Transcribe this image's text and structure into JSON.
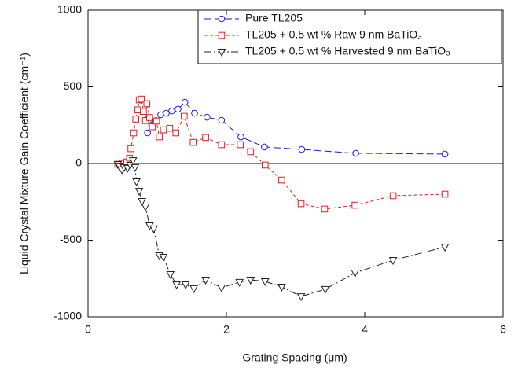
{
  "chart_data": {
    "type": "line",
    "xlabel": "Grating Spacing (μm)",
    "ylabel": "Liquid Crystal Mixture Gain Coefficient (cm⁻¹)",
    "xlim": [
      0,
      6
    ],
    "xticks": [
      0,
      2,
      4,
      6
    ],
    "ylim": [
      -1000,
      1000
    ],
    "yticks": [
      -1000,
      -500,
      0,
      500,
      1000
    ],
    "zero_line": true,
    "legend": "upper right",
    "series": [
      {
        "name": "Pure TL205",
        "color": "#1a1adb",
        "marker": "circle",
        "line_style": "dashed",
        "x": [
          0.86,
          0.92,
          0.98,
          1.05,
          1.13,
          1.21,
          1.3,
          1.4,
          1.54,
          1.72,
          1.93,
          2.21,
          2.55,
          3.09,
          3.87,
          5.16
        ],
        "values": [
          200,
          250,
          280,
          318,
          328,
          343,
          354,
          400,
          328,
          302,
          282,
          174,
          108,
          92,
          67,
          62
        ]
      },
      {
        "name": "TL205 + 0.5 wt % Raw 9 nm BaTiO₃",
        "color": "#e02020",
        "marker": "square",
        "line_style": "dotted",
        "x": [
          0.43,
          0.5,
          0.56,
          0.6,
          0.62,
          0.66,
          0.69,
          0.72,
          0.74,
          0.77,
          0.8,
          0.83,
          0.85,
          0.89,
          0.93,
          0.99,
          1.03,
          1.09,
          1.18,
          1.27,
          1.39,
          1.52,
          1.7,
          1.93,
          2.2,
          2.35,
          2.56,
          2.8,
          3.08,
          3.42,
          3.86,
          4.41,
          5.16
        ],
        "values": [
          -5,
          0,
          10,
          35,
          97,
          200,
          290,
          350,
          415,
          420,
          340,
          280,
          390,
          300,
          240,
          277,
          174,
          220,
          230,
          200,
          308,
          138,
          170,
          123,
          123,
          77,
          -10,
          -108,
          -262,
          -297,
          -272,
          -210,
          -200
        ]
      },
      {
        "name": "TL205 + 0.5 wt % Harvested 9 nm BaTiO₃",
        "color": "#222222",
        "marker": "triangle-down",
        "line_style": "dashdot",
        "x": [
          0.43,
          0.45,
          0.49,
          0.52,
          0.57,
          0.61,
          0.65,
          0.68,
          0.7,
          0.74,
          0.78,
          0.83,
          0.89,
          0.95,
          1.03,
          1.09,
          1.19,
          1.28,
          1.41,
          1.53,
          1.7,
          1.93,
          2.19,
          2.35,
          2.56,
          2.8,
          3.08,
          3.43,
          3.86,
          4.41,
          5.16
        ],
        "values": [
          -5,
          -15,
          -40,
          -25,
          -30,
          -10,
          20,
          -25,
          -118,
          -180,
          -246,
          -282,
          -405,
          -425,
          -600,
          -610,
          -723,
          -790,
          -790,
          -815,
          -759,
          -810,
          -774,
          -759,
          -769,
          -805,
          -867,
          -820,
          -713,
          -631,
          -544
        ]
      }
    ]
  }
}
